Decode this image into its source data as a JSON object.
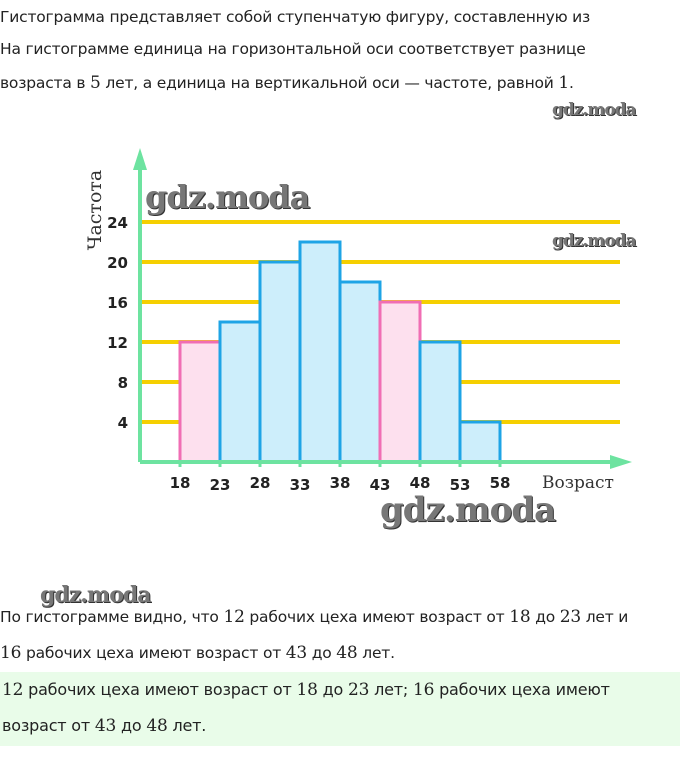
{
  "intro": {
    "line1": "Гистограмма представляет собой ступенчатую фигуру, составленную из",
    "line2": "На гистограмме единица на горизонтальной оси соответствует разнице",
    "line3_a": "возраста в ",
    "line3_n1": "5",
    "line3_b": " лет, а единица на вертикальной оси — частоте, равной ",
    "line3_n2": "1",
    "line3_c": "."
  },
  "watermark": "gdz.moda",
  "chart_data": {
    "type": "bar",
    "title": "",
    "xlabel": "Возраст",
    "ylabel": "Частота",
    "x_ticks": [
      "18",
      "23",
      "28",
      "33",
      "38",
      "43",
      "48",
      "53",
      "58"
    ],
    "y_ticks": [
      "4",
      "8",
      "12",
      "16",
      "20",
      "24"
    ],
    "ylim": [
      0,
      24
    ],
    "grid": true,
    "bins": [
      {
        "from": 18,
        "to": 23,
        "value": 12,
        "highlight": true
      },
      {
        "from": 23,
        "to": 28,
        "value": 14,
        "highlight": false
      },
      {
        "from": 28,
        "to": 33,
        "value": 20,
        "highlight": false
      },
      {
        "from": 33,
        "to": 38,
        "value": 22,
        "highlight": false
      },
      {
        "from": 38,
        "to": 43,
        "value": 18,
        "highlight": false
      },
      {
        "from": 43,
        "to": 48,
        "value": 16,
        "highlight": true
      },
      {
        "from": 48,
        "to": 53,
        "value": 12,
        "highlight": false
      },
      {
        "from": 53,
        "to": 58,
        "value": 4,
        "highlight": false
      }
    ],
    "colors": {
      "bar_fill": "#cdeefb",
      "bar_stroke": "#1ea4e6",
      "highlight_fill": "#fde0ee",
      "highlight_stroke": "#f06eb4",
      "grid": "#f5cf00",
      "axis": "#6de3a0"
    }
  },
  "explanation": {
    "l1": [
      "По гистограмме видно, что ",
      "12",
      " рабочих цеха имеют возраст от ",
      "18",
      " до ",
      "23",
      " лет и"
    ],
    "l2": [
      "16",
      " рабочих цеха имеют возраст от ",
      "43",
      " до ",
      "48",
      " лет."
    ]
  },
  "answer": {
    "l1": [
      "12",
      " рабочих цеха имеют возраст от ",
      "18",
      " до ",
      "23",
      " лет; ",
      "16",
      " рабочих цеха имеют"
    ],
    "l2": [
      "возраст от ",
      "43",
      " до ",
      "48",
      " лет."
    ]
  }
}
